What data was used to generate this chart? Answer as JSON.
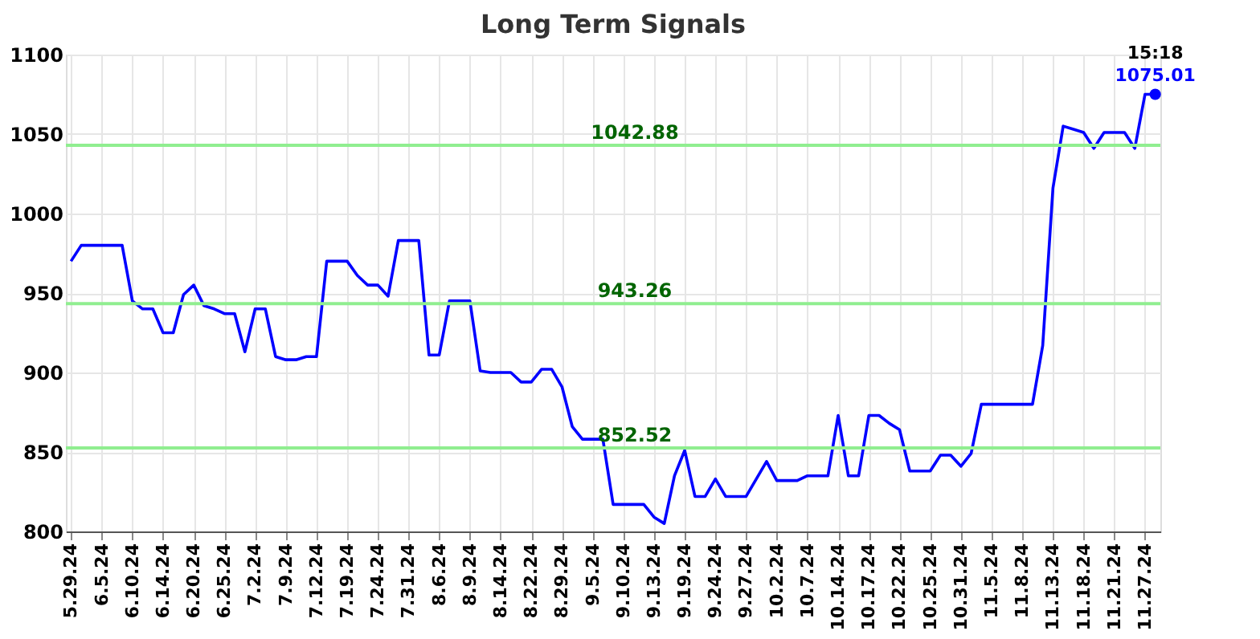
{
  "chart_data": {
    "type": "line",
    "title": "Long Term Signals",
    "categories": [
      "5.29.24",
      null,
      null,
      "6.5.24",
      null,
      null,
      "6.10.24",
      null,
      null,
      "6.14.24",
      null,
      null,
      "6.20.24",
      null,
      null,
      "6.25.24",
      null,
      null,
      "7.2.24",
      null,
      null,
      "7.9.24",
      null,
      null,
      "7.12.24",
      null,
      null,
      "7.19.24",
      null,
      null,
      "7.24.24",
      null,
      null,
      "7.31.24",
      null,
      null,
      "8.6.24",
      null,
      null,
      "8.9.24",
      null,
      null,
      "8.14.24",
      null,
      null,
      "8.22.24",
      null,
      null,
      "8.29.24",
      null,
      null,
      "9.5.24",
      null,
      null,
      "9.10.24",
      null,
      null,
      "9.13.24",
      null,
      null,
      "9.19.24",
      null,
      null,
      "9.24.24",
      null,
      null,
      "9.27.24",
      null,
      null,
      "10.2.24",
      null,
      null,
      "10.7.24",
      null,
      null,
      "10.14.24",
      null,
      null,
      "10.17.24",
      null,
      null,
      "10.22.24",
      null,
      null,
      "10.25.24",
      null,
      null,
      "10.31.24",
      null,
      null,
      "11.5.24",
      null,
      null,
      "11.8.24",
      null,
      null,
      "11.13.24",
      null,
      null,
      "11.18.24",
      null,
      null,
      "11.21.24",
      null,
      null,
      "11.27.24",
      null
    ],
    "series": [
      {
        "color": "#0000ff",
        "values": [
          970,
          980,
          980,
          980,
          980,
          980,
          945,
          940,
          940,
          925,
          925,
          949,
          955,
          942,
          940,
          937,
          937,
          913,
          940,
          940,
          910,
          908,
          908,
          910,
          910,
          970,
          970,
          970,
          961,
          955,
          955,
          948,
          983,
          983,
          983,
          911,
          911,
          945,
          945,
          945,
          901,
          900,
          900,
          900,
          894,
          894,
          902,
          902,
          891,
          866,
          858,
          858,
          858,
          817,
          817,
          817,
          817,
          809,
          805,
          835,
          851,
          822,
          822,
          833,
          822,
          822,
          822,
          833,
          844,
          832,
          832,
          832,
          835,
          835,
          835,
          873,
          835,
          835,
          873,
          873,
          868,
          864,
          838,
          838,
          838,
          848,
          848,
          841,
          849,
          880,
          880,
          880,
          880,
          880,
          880,
          917,
          1016,
          1055,
          1053,
          1051,
          1041,
          1051,
          1051,
          1051,
          1041,
          1075,
          1075.01
        ],
        "value_labels": [
          null,
          null,
          null,
          null,
          null,
          null,
          null,
          null,
          null,
          null,
          null,
          null,
          null,
          null,
          null,
          null,
          null,
          null,
          null,
          null,
          null,
          null,
          null,
          null,
          null,
          null,
          null,
          null,
          null,
          null,
          null,
          null,
          null,
          null,
          null,
          null,
          null,
          null,
          null,
          null,
          null,
          null,
          null,
          null,
          null,
          null,
          null,
          null,
          null,
          null,
          null,
          null,
          null,
          null,
          null,
          null,
          null,
          null,
          null,
          null,
          null,
          null,
          null,
          null,
          null,
          null,
          null,
          null,
          null,
          null,
          null,
          null,
          null,
          null,
          null,
          null,
          null,
          null,
          null,
          null,
          null,
          null,
          null,
          null,
          null,
          null,
          null,
          null,
          null,
          null,
          null,
          null,
          null,
          null,
          null,
          null,
          null,
          null,
          null,
          null,
          null,
          null,
          null,
          null,
          null,
          null,
          "1075.01"
        ]
      }
    ],
    "annotations": [
      "15:18"
    ],
    "ylim": [
      800,
      1100
    ],
    "yticks": [
      800,
      850,
      900,
      950,
      1000,
      1050,
      1100
    ],
    "ref_lines": [
      {
        "axis": "y",
        "value": 1042.88,
        "label": "1042.88",
        "color": "#90ee90"
      },
      {
        "axis": "y",
        "value": 943.26,
        "label": "943.26",
        "color": "#90ee90"
      },
      {
        "axis": "y",
        "value": 852.52,
        "label": "852.52",
        "color": "#90ee90"
      }
    ],
    "grid": true,
    "line_style": "solid"
  }
}
